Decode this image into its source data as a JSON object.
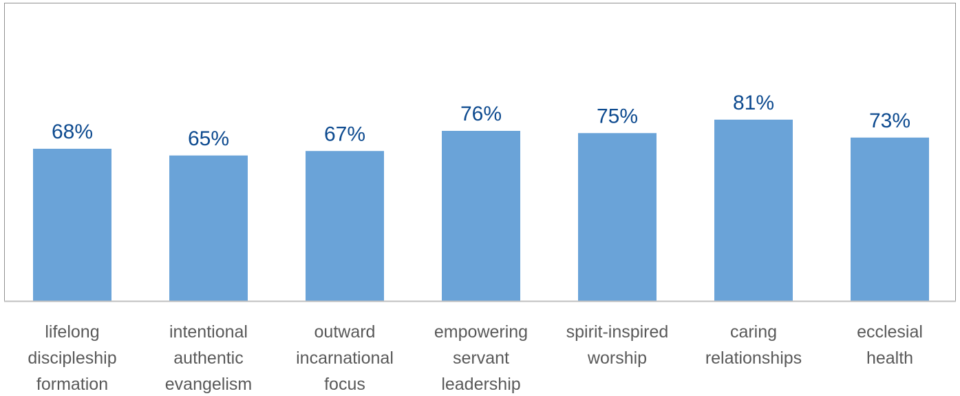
{
  "chart_data": {
    "type": "bar",
    "categories": [
      [
        "lifelong",
        "discipleship",
        "formation"
      ],
      [
        "intentional",
        "authentic",
        "evangelism"
      ],
      [
        "outward",
        "incarnational",
        "focus"
      ],
      [
        "empowering",
        "servant",
        "leadership"
      ],
      [
        "spirit-inspired",
        "worship"
      ],
      [
        "caring",
        "relationships"
      ],
      [
        "ecclesial",
        "health"
      ]
    ],
    "values": [
      68,
      65,
      67,
      76,
      75,
      81,
      73
    ],
    "value_labels": [
      "68%",
      "65%",
      "67%",
      "76%",
      "75%",
      "81%",
      "73%"
    ],
    "unit": "%",
    "ylim": [
      0,
      100
    ],
    "grid": false,
    "legend": "none",
    "colors": {
      "bar": "#6aa3d8",
      "value_label": "#0d4a8f",
      "axis": "#bfbfbf",
      "frame": "#8f8f8f",
      "category_label": "#595959"
    }
  }
}
